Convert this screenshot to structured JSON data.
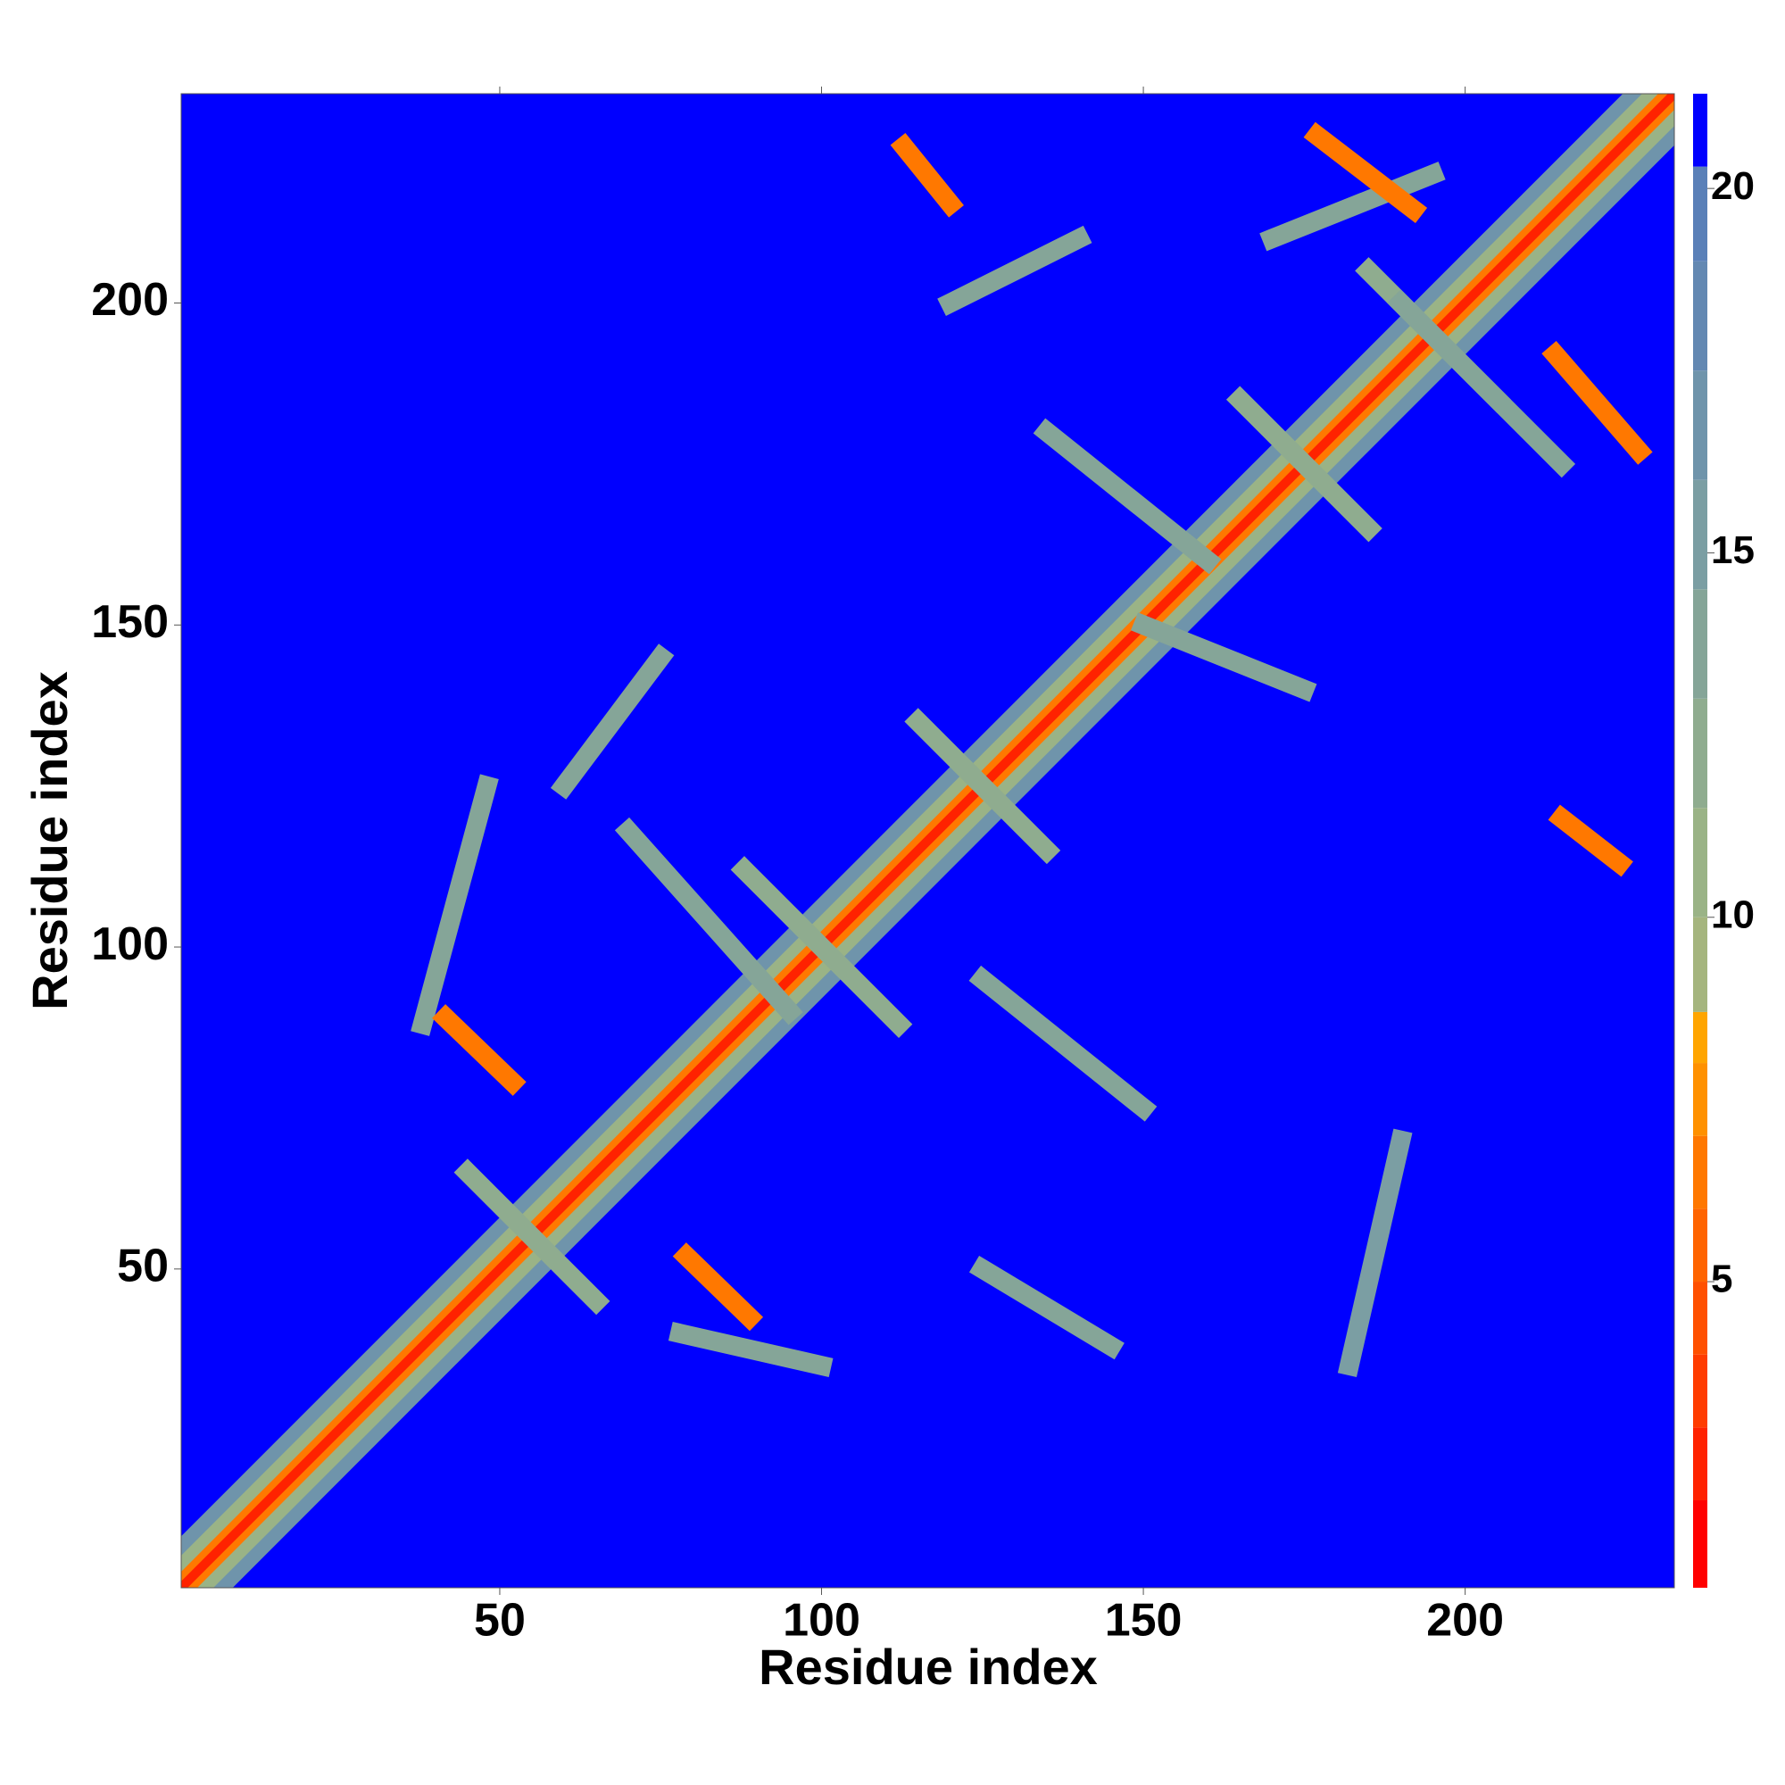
{
  "chart_data": {
    "type": "heatmap",
    "xlabel": "Residue index",
    "ylabel": "Residue index",
    "xlim": [
      0.5,
      232.5
    ],
    "ylim": [
      0.5,
      232.5
    ],
    "xticks": [
      50,
      100,
      150,
      200
    ],
    "yticks": [
      50,
      100,
      150,
      200
    ],
    "clim": [
      0.8,
      21.3
    ],
    "cticks": [
      5,
      10,
      15,
      20
    ],
    "colorscale": [
      [
        0.8,
        "#ff0000"
      ],
      [
        2,
        "#ff2200"
      ],
      [
        3,
        "#ff3c00"
      ],
      [
        4,
        "#ff5000"
      ],
      [
        5,
        "#ff6400"
      ],
      [
        6,
        "#ff7800"
      ],
      [
        7,
        "#ff9100"
      ],
      [
        8,
        "#ffa500"
      ],
      [
        8.7,
        "#a5b57e"
      ],
      [
        10,
        "#9ab386"
      ],
      [
        11.5,
        "#8fac8f"
      ],
      [
        13,
        "#85a598"
      ],
      [
        14.5,
        "#7b9ea3"
      ],
      [
        16,
        "#6f94ab"
      ],
      [
        17.5,
        "#6388b2"
      ],
      [
        19,
        "#5a80b8"
      ],
      [
        20.3,
        "#0000ff"
      ]
    ],
    "diagonal_bands": [
      {
        "half_width": 8,
        "value": 16
      },
      {
        "half_width": 5,
        "value": 11
      },
      {
        "half_width": 2.5,
        "value": 6
      },
      {
        "half_width": 1,
        "value": 2
      }
    ],
    "contacts": [
      {
        "from": [
          88,
          112
        ],
        "to": [
          112,
          88
        ],
        "value": 12
      },
      {
        "from": [
          115,
          135
        ],
        "to": [
          135,
          115
        ],
        "value": 12
      },
      {
        "from": [
          45,
          65
        ],
        "to": [
          65,
          45
        ],
        "value": 12
      },
      {
        "from": [
          165,
          185
        ],
        "to": [
          185,
          165
        ],
        "value": 12
      },
      {
        "from": [
          185,
          205
        ],
        "to": [
          205,
          185
        ],
        "value": 12
      },
      {
        "from": [
          38,
          88
        ],
        "to": [
          48,
          125
        ],
        "value": 13
      },
      {
        "from": [
          60,
          125
        ],
        "to": [
          75,
          145
        ],
        "value": 13
      },
      {
        "from": [
          70,
          118
        ],
        "to": [
          95,
          90
        ],
        "value": 14
      },
      {
        "from": [
          125,
          95
        ],
        "to": [
          150,
          75
        ],
        "value": 13
      },
      {
        "from": [
          135,
          180
        ],
        "to": [
          160,
          160
        ],
        "value": 13
      },
      {
        "from": [
          150,
          150
        ],
        "to": [
          175,
          140
        ],
        "value": 14
      },
      {
        "from": [
          190,
          200
        ],
        "to": [
          215,
          175
        ],
        "value": 13
      },
      {
        "from": [
          170,
          210
        ],
        "to": [
          195,
          220
        ],
        "value": 14
      },
      {
        "from": [
          120,
          200
        ],
        "to": [
          140,
          210
        ],
        "value": 14
      },
      {
        "from": [
          78,
          40
        ],
        "to": [
          100,
          35
        ],
        "value": 13
      },
      {
        "from": [
          125,
          50
        ],
        "to": [
          145,
          38
        ],
        "value": 13
      },
      {
        "from": [
          182,
          35
        ],
        "to": [
          190,
          70
        ],
        "value": 15
      },
      {
        "from": [
          112.8,
          224.3
        ],
        "to": [
          120,
          215.4
        ],
        "value": 6
      },
      {
        "from": [
          177,
          226
        ],
        "to": [
          192,
          214.5
        ],
        "value": 6
      },
      {
        "from": [
          214,
          192
        ],
        "to": [
          227,
          177
        ],
        "value": 6
      },
      {
        "from": [
          215,
          120
        ],
        "to": [
          224,
          113
        ],
        "value": 6
      },
      {
        "from": [
          41.6,
          89
        ],
        "to": [
          52,
          79
        ],
        "value": 6
      },
      {
        "from": [
          79,
          52
        ],
        "to": [
          88.8,
          42.5
        ],
        "value": 6
      }
    ]
  }
}
